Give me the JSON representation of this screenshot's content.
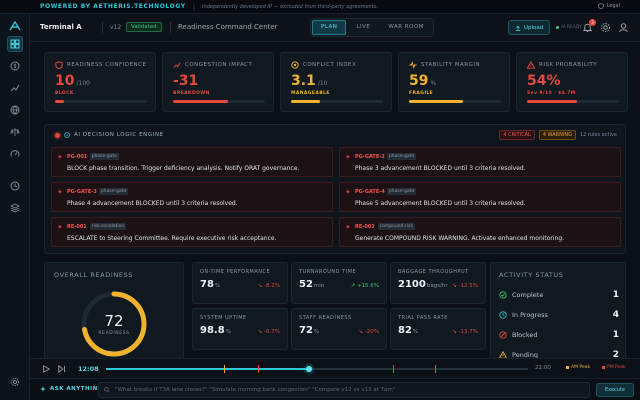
{
  "banner": {
    "powered": "POWERED BY AETHERIS.TECHNOLOGY",
    "disclaimer": "Independently developed IP — excluded from third-party agreements.",
    "legal": "Legal"
  },
  "header": {
    "terminal": "Terminal A",
    "version": "v12",
    "validated": "Validated",
    "title": "Readiness Command Center",
    "modes": [
      "PLAN",
      "LIVE",
      "WAR ROOM"
    ],
    "active_mode": "PLAN",
    "upload": "Upload",
    "status": "AI READY",
    "notifications": "3"
  },
  "kpis": [
    {
      "label": "READINESS CONFIDENCE",
      "value": "10",
      "unit": "/100",
      "sub": "BLOCK",
      "color": "#e5483d",
      "fill": 0.1,
      "icon": "shield-icon"
    },
    {
      "label": "CONGESTION IMPACT",
      "value": "-31",
      "unit": "",
      "sub": "BREAKDOWN",
      "color": "#e5483d",
      "fill": 0.6,
      "icon": "trend-icon"
    },
    {
      "label": "CONFLICT INDEX",
      "value": "3.1",
      "unit": "/10",
      "sub": "MANAGEABLE",
      "color": "#f1b230",
      "fill": 0.31,
      "icon": "target-icon"
    },
    {
      "label": "STABILITY MARGIN",
      "value": "59",
      "unit": "%",
      "sub": "FRAGILE",
      "color": "#f1b230",
      "fill": 0.59,
      "icon": "pulse-icon"
    },
    {
      "label": "RISK PROBABILITY",
      "value": "54%",
      "unit": "",
      "sub": "Sev 9/10 · $4.7M",
      "color": "#e5483d",
      "fill": 0.54,
      "icon": "warning-icon"
    }
  ],
  "engine": {
    "title": "AI DECISION LOGIC ENGINE",
    "critical": "4 CRITICAL",
    "warning": "4 WARNING",
    "rules_active": "12 rules active",
    "rules": [
      {
        "code": "PG-001",
        "tag": "phase-gate",
        "text": "BLOCK phase transition. Trigger deficiency analysis. Notify ORAT governance.",
        "level": "red"
      },
      {
        "code": "PG-GATE-2",
        "tag": "phase-gate",
        "text": "Phase 3 advancement BLOCKED until 3 criteria resolved.",
        "level": "red"
      },
      {
        "code": "PG-GATE-3",
        "tag": "phase-gate",
        "text": "Phase 4 advancement BLOCKED until 3 criteria resolved.",
        "level": "red"
      },
      {
        "code": "PG-GATE-4",
        "tag": "phase-gate",
        "text": "Phase 5 advancement BLOCKED until 3 criteria resolved.",
        "level": "red"
      },
      {
        "code": "RE-001",
        "tag": "risk-escalation",
        "text": "ESCALATE to Steering Committee. Require executive risk acceptance.",
        "level": "red"
      },
      {
        "code": "RE-003",
        "tag": "compound-risk",
        "text": "Generate COMPOUND RISK WARNING. Activate enhanced monitoring.",
        "level": "red"
      }
    ]
  },
  "readiness": {
    "title": "OVERALL READINESS",
    "value": "72",
    "label": "READINESS",
    "fraction": 0.72
  },
  "metrics": [
    {
      "label": "ON-TIME PERFORMANCE",
      "value": "78",
      "unit": "%",
      "delta": "↘ -8.2%",
      "delta_color": "#e5483d"
    },
    {
      "label": "TURNAROUND TIME",
      "value": "52",
      "unit": "min",
      "delta": "↗ +15.6%",
      "delta_color": "#39c77a"
    },
    {
      "label": "BAGGAGE THROUGHPUT",
      "value": "2100",
      "unit": "bags/hr",
      "delta": "↘ -12.5%",
      "delta_color": "#e5483d"
    },
    {
      "label": "SYSTEM UPTIME",
      "value": "98.8",
      "unit": "%",
      "delta": "↘ -0.7%",
      "delta_color": "#e5483d"
    },
    {
      "label": "STAFF READINESS",
      "value": "72",
      "unit": "%",
      "delta": "↘ -20%",
      "delta_color": "#e5483d"
    },
    {
      "label": "TRIAL PASS RATE",
      "value": "82",
      "unit": "%",
      "delta": "↘ -13.7%",
      "delta_color": "#e5483d"
    }
  ],
  "activity": {
    "title": "ACTIVITY STATUS",
    "items": [
      {
        "label": "Complete",
        "count": "1",
        "color": "#39c77a",
        "icon": "check-circle-icon"
      },
      {
        "label": "In Progress",
        "count": "4",
        "color": "#2fc6d6",
        "icon": "clock-icon"
      },
      {
        "label": "Blocked",
        "count": "1",
        "color": "#e5483d",
        "icon": "blocked-icon"
      },
      {
        "label": "Pending",
        "count": "2",
        "color": "#f1b230",
        "icon": "warning-icon"
      }
    ]
  },
  "timeline": {
    "current": "12:08",
    "end": "22:00",
    "progress": 0.48,
    "legend_am": "AM Peak",
    "legend_pm": "PM Peak"
  },
  "ask": {
    "label": "ASK ANYTHING",
    "placeholder": "\"What breaks if T3A lane closes?\"   \"Simulate morning bank congestion\"   \"Compare v12 vs v13 at 7am\"",
    "send": "Execute"
  }
}
